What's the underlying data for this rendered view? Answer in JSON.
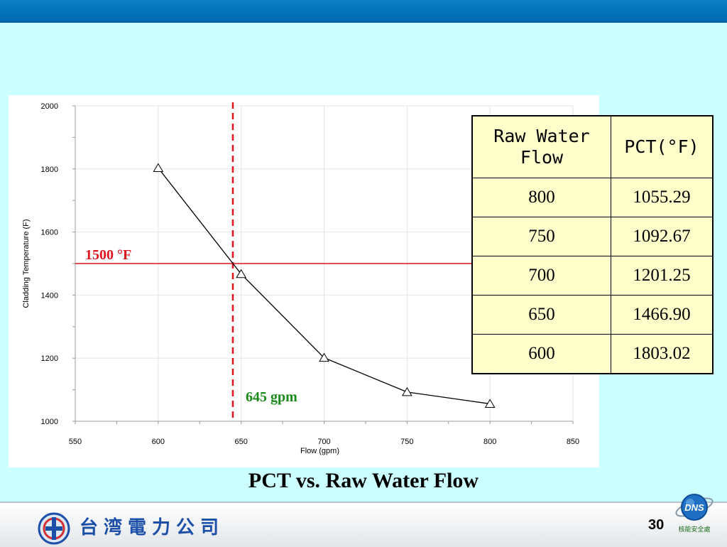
{
  "colors": {
    "background": "#ccffff",
    "top_bar": "#0a7fc4",
    "table_fill": "#ffffcc",
    "threshold_line": "#e0141e",
    "flow_marker": "#e0141e",
    "annotation_green": "#1a8a1a",
    "series_line": "#000000"
  },
  "chart_data": {
    "type": "line",
    "xlabel": "Flow (gpm)",
    "ylabel": "Cladding Temperature (F)",
    "xlim": [
      550,
      850
    ],
    "ylim": [
      1000,
      2000
    ],
    "x_ticks": [
      550,
      600,
      650,
      700,
      750,
      800,
      850
    ],
    "y_ticks": [
      1000,
      1200,
      1400,
      1600,
      1800,
      2000
    ],
    "grid": true,
    "marker": "triangle-open",
    "series": [
      {
        "x": [
          600,
          650,
          700,
          750,
          800
        ],
        "y": [
          1803.02,
          1466.9,
          1201.25,
          1092.67,
          1055.29
        ]
      }
    ],
    "reference_lines": [
      {
        "orientation": "horizontal",
        "value": 1500,
        "label": "1500 °F",
        "style": "solid"
      },
      {
        "orientation": "vertical",
        "value": 645,
        "label": "645 gpm",
        "style": "dashed"
      }
    ]
  },
  "table": {
    "headers": [
      "Raw Water\nFlow",
      "PCT(°F)"
    ],
    "rows": [
      [
        "800",
        "1055.29"
      ],
      [
        "750",
        "1092.67"
      ],
      [
        "700",
        "1201.25"
      ],
      [
        "650",
        "1466.90"
      ],
      [
        "600",
        "1803.02"
      ]
    ]
  },
  "caption": "PCT vs. Raw Water Flow",
  "footer": {
    "company_name": "台湾電力公司",
    "page_number": "30",
    "logo_icon": "taipower-logo-icon",
    "badge_icon": "dns-globe-icon",
    "badge_text": "核能安全處"
  }
}
